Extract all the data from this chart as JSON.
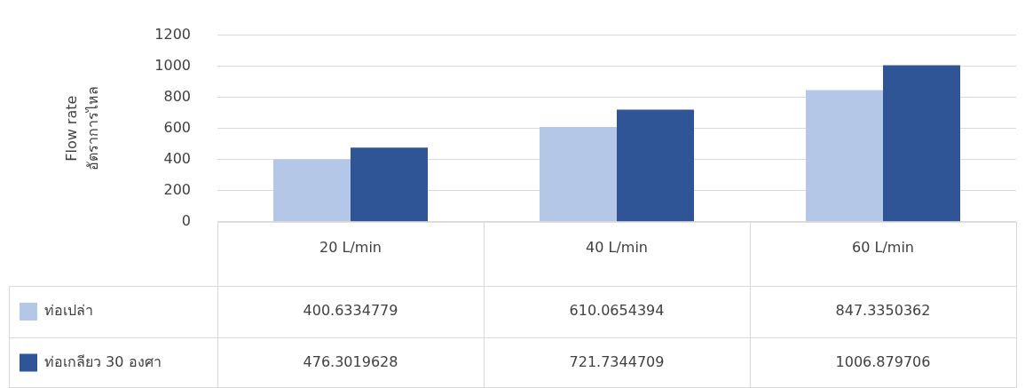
{
  "chart_data": {
    "type": "bar",
    "ylabel": "Flow rate\nอัตราการไหล",
    "categories": [
      "20 L/min",
      "40 L/min",
      "60 L/min"
    ],
    "series": [
      {
        "name": "ท่อเปล่า",
        "color": "#b4c7e7",
        "values": [
          400.6334779,
          610.0654394,
          847.3350362
        ]
      },
      {
        "name": "ท่อเกลียว 30 องศา",
        "color": "#2f5597",
        "values": [
          476.3019628,
          721.7344709,
          1006.879706
        ]
      }
    ],
    "ylim": [
      0,
      1200
    ],
    "yticks": [
      0,
      200,
      400,
      600,
      800,
      1000,
      1200
    ],
    "grid": "y",
    "legend": "bottom left",
    "data_labels": true
  }
}
